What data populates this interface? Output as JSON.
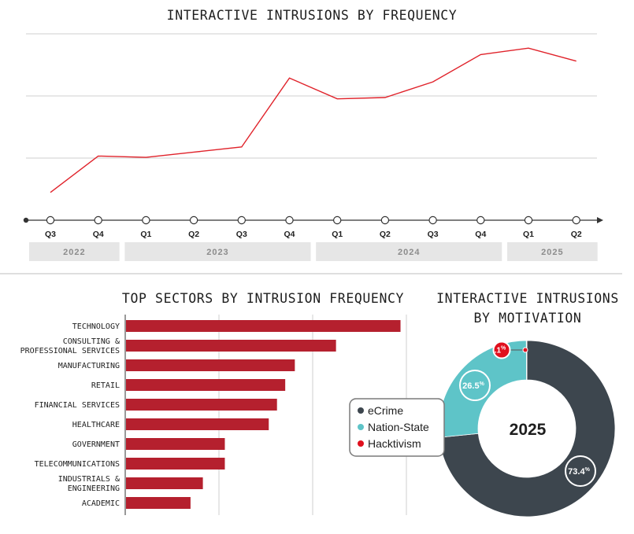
{
  "colors": {
    "line": "#e0222a",
    "bar": "#b5202e",
    "ecrime": "#3d464e",
    "nation_state": "#5ec4c8",
    "hacktivism": "#e0101e",
    "grid": "#cfcfcf",
    "year_band": "#e6e6e6"
  },
  "chart_data": [
    {
      "type": "line",
      "title": "INTERACTIVE INTRUSIONS BY FREQUENCY",
      "categories": [
        "Q3",
        "Q4",
        "Q1",
        "Q2",
        "Q3",
        "Q4",
        "Q1",
        "Q2",
        "Q3",
        "Q4",
        "Q1",
        "Q2"
      ],
      "values": [
        5,
        33,
        32,
        36,
        40,
        93,
        77,
        78,
        90,
        111,
        116,
        106
      ],
      "ylim": [
        0,
        130
      ],
      "year_groups": [
        {
          "label": "2022",
          "start": 0,
          "end": 1
        },
        {
          "label": "2023",
          "start": 2,
          "end": 5
        },
        {
          "label": "2024",
          "start": 6,
          "end": 9
        },
        {
          "label": "2025",
          "start": 10,
          "end": 11
        }
      ]
    },
    {
      "type": "bar",
      "title": "TOP SECTORS BY INTRUSION FREQUENCY",
      "categories": [
        [
          "TECHNOLOGY"
        ],
        [
          "CONSULTING &",
          "PROFESSIONAL SERVICES"
        ],
        [
          "MANUFACTURING"
        ],
        [
          "RETAIL"
        ],
        [
          "FINANCIAL SERVICES"
        ],
        [
          "HEALTHCARE"
        ],
        [
          "GOVERNMENT"
        ],
        [
          "TELECOMMUNICATIONS"
        ],
        [
          "INDUSTRIALS &",
          "ENGINEERING"
        ],
        [
          "ACADEMIC"
        ]
      ],
      "values": [
        100,
        76.5,
        61.5,
        58,
        55,
        52,
        36,
        36,
        28,
        23.5
      ],
      "xlim": [
        0,
        103
      ]
    },
    {
      "type": "pie",
      "title": [
        "INTERACTIVE INTRUSIONS",
        "BY MOTIVATION"
      ],
      "center_label": "2025",
      "slices": [
        {
          "name": "eCrime",
          "value": 73.4,
          "label": "73.4",
          "sup": "%"
        },
        {
          "name": "Nation-State",
          "value": 26.5,
          "label": "26.5",
          "sup": "%"
        },
        {
          "name": "Hacktivism",
          "value": 0.1,
          "label": ".1",
          "sup": "%"
        }
      ],
      "legend": [
        "eCrime",
        "Nation-State",
        "Hacktivism"
      ]
    }
  ]
}
